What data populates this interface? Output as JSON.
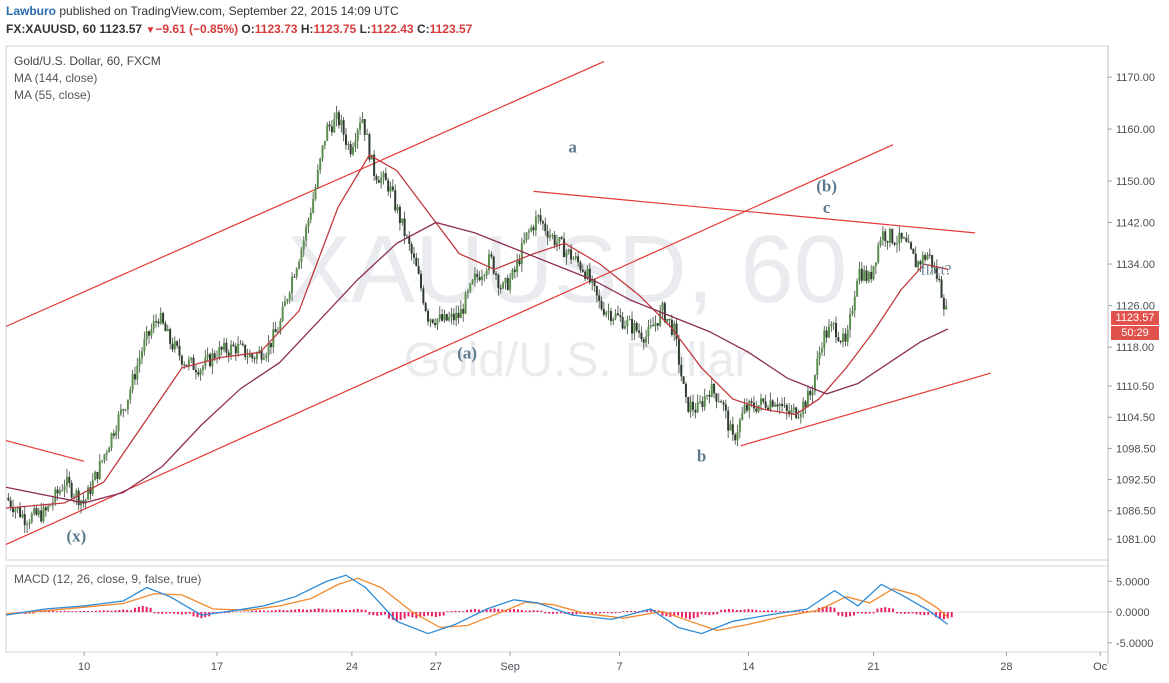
{
  "header": {
    "author": "Lawburo",
    "published": "published on TradingView.com, September 22, 2015 14:09 UTC",
    "symbol": "FX:XAUUSD, 60",
    "last": "1123.57",
    "change_icon": "triangle-down-icon",
    "change": "−9.61 (−0.85%)",
    "ohlc": [
      {
        "k": "O:",
        "v": "1123.73"
      },
      {
        "k": "H:",
        "v": "1123.75"
      },
      {
        "k": "L:",
        "v": "1122.43"
      },
      {
        "k": "C:",
        "v": "1123.57"
      }
    ]
  },
  "legend": {
    "title": "Gold/U.S. Dollar, 60, FXCM",
    "ma1": "MA (144, close)",
    "ma2": "MA (55, close)",
    "macd": "MACD (12, 26, close, 9, false, true)"
  },
  "watermark": {
    "line1": "XAUUSD, 60",
    "line2": "Gold/U.S. Dollar"
  },
  "price_badge": {
    "value": "1123.57",
    "countdown": "50:29",
    "color": "#e0524b"
  },
  "annotations": [
    {
      "text": "a",
      "time": 14.5,
      "price": 1155.5
    },
    {
      "text": "(a)",
      "time": 11.8,
      "price": 1115.8
    },
    {
      "text": "(b)",
      "time": 21.0,
      "price": 1148.0
    },
    {
      "text": "c",
      "time": 21.0,
      "price": 1143.8
    },
    {
      "text": "fl/ct?",
      "time": 23.8,
      "price": 1132.0
    },
    {
      "text": "b",
      "time": 17.8,
      "price": 1096.0
    },
    {
      "text": "(x)",
      "time": 1.8,
      "price": 1080.6
    }
  ],
  "chart_data": {
    "type": "line",
    "price_axis": {
      "range": [
        1077,
        1176
      ],
      "ticks": [
        1170.0,
        1160.0,
        1150.0,
        1142.0,
        1134.0,
        1126.0,
        1118.0,
        1110.5,
        1104.5,
        1098.5,
        1092.5,
        1086.5,
        1081.0
      ],
      "tick_labels": [
        "1170.00",
        "1160.00",
        "1150.00",
        "1142.00",
        "1134.00",
        "1126.00",
        "1118.00",
        "1110.50",
        "1104.50",
        "1098.50",
        "1092.50",
        "1086.50",
        "1081.00"
      ]
    },
    "time_axis": {
      "unit": "trading days (Sep 2015)",
      "ticks": [
        {
          "label": "10",
          "t": 2.0
        },
        {
          "label": "17",
          "t": 5.4
        },
        {
          "label": "24",
          "t": 8.85
        },
        {
          "label": "27",
          "t": 11.0
        },
        {
          "label": "Sep",
          "t": 12.9
        },
        {
          "label": "7",
          "t": 15.7
        },
        {
          "label": "14",
          "t": 19.0
        },
        {
          "label": "21",
          "t": 22.2
        },
        {
          "label": "28",
          "t": 25.6
        },
        {
          "label": "Oc",
          "t": 28.0
        }
      ]
    },
    "price_path": [
      [
        0.0,
        1089
      ],
      [
        0.5,
        1085
      ],
      [
        1.0,
        1086
      ],
      [
        1.5,
        1092
      ],
      [
        2.0,
        1088
      ],
      [
        2.4,
        1095
      ],
      [
        2.8,
        1103
      ],
      [
        3.1,
        1108
      ],
      [
        3.5,
        1118
      ],
      [
        3.9,
        1124
      ],
      [
        4.2,
        1119
      ],
      [
        4.6,
        1115
      ],
      [
        5.0,
        1114
      ],
      [
        5.4,
        1117
      ],
      [
        5.9,
        1118
      ],
      [
        6.3,
        1116
      ],
      [
        6.7,
        1118
      ],
      [
        7.0,
        1122
      ],
      [
        7.3,
        1131
      ],
      [
        7.6,
        1138
      ],
      [
        7.9,
        1148
      ],
      [
        8.2,
        1160
      ],
      [
        8.5,
        1162
      ],
      [
        8.8,
        1156
      ],
      [
        9.1,
        1163
      ],
      [
        9.4,
        1152
      ],
      [
        9.8,
        1149
      ],
      [
        10.2,
        1140
      ],
      [
        10.5,
        1133
      ],
      [
        10.8,
        1124
      ],
      [
        11.2,
        1123
      ],
      [
        11.6,
        1124
      ],
      [
        12.0,
        1131
      ],
      [
        12.4,
        1135
      ],
      [
        12.7,
        1129
      ],
      [
        13.0,
        1132
      ],
      [
        13.3,
        1139
      ],
      [
        13.6,
        1143
      ],
      [
        14.0,
        1139
      ],
      [
        14.4,
        1136
      ],
      [
        14.8,
        1133
      ],
      [
        15.2,
        1126
      ],
      [
        15.6,
        1124
      ],
      [
        16.0,
        1122
      ],
      [
        16.4,
        1120
      ],
      [
        16.8,
        1125
      ],
      [
        17.1,
        1121
      ],
      [
        17.4,
        1107
      ],
      [
        17.7,
        1106
      ],
      [
        18.0,
        1110
      ],
      [
        18.3,
        1108
      ],
      [
        18.6,
        1100
      ],
      [
        18.9,
        1106
      ],
      [
        19.3,
        1107
      ],
      [
        19.7,
        1108
      ],
      [
        20.0,
        1105
      ],
      [
        20.3,
        1106
      ],
      [
        20.6,
        1109
      ],
      [
        20.9,
        1120
      ],
      [
        21.2,
        1122
      ],
      [
        21.5,
        1118
      ],
      [
        21.8,
        1133
      ],
      [
        22.1,
        1131
      ],
      [
        22.4,
        1140
      ],
      [
        22.7,
        1139
      ],
      [
        23.0,
        1138
      ],
      [
        23.3,
        1134
      ],
      [
        23.6,
        1136
      ],
      [
        23.9,
        1130
      ],
      [
        24.1,
        1123.57
      ]
    ],
    "series": [
      {
        "name": "MA (55, close)",
        "color": "#c0393f",
        "points": [
          [
            0.0,
            1087
          ],
          [
            1.5,
            1088
          ],
          [
            2.5,
            1092
          ],
          [
            3.5,
            1103
          ],
          [
            4.5,
            1114
          ],
          [
            5.5,
            1116
          ],
          [
            6.5,
            1117
          ],
          [
            7.5,
            1125
          ],
          [
            8.5,
            1145
          ],
          [
            9.3,
            1155
          ],
          [
            10.0,
            1152
          ],
          [
            10.8,
            1144
          ],
          [
            11.6,
            1136
          ],
          [
            12.5,
            1133
          ],
          [
            13.5,
            1136
          ],
          [
            14.3,
            1138
          ],
          [
            15.2,
            1134
          ],
          [
            16.2,
            1128
          ],
          [
            17.0,
            1122
          ],
          [
            17.8,
            1114
          ],
          [
            18.6,
            1108
          ],
          [
            19.4,
            1106
          ],
          [
            20.2,
            1105
          ],
          [
            20.8,
            1108
          ],
          [
            21.5,
            1114
          ],
          [
            22.2,
            1121
          ],
          [
            22.9,
            1129
          ],
          [
            23.5,
            1134
          ],
          [
            24.1,
            1133
          ]
        ]
      },
      {
        "name": "MA (144, close)",
        "color": "#8e2f55",
        "points": [
          [
            0.0,
            1091
          ],
          [
            2.0,
            1088
          ],
          [
            3.0,
            1090
          ],
          [
            4.0,
            1095
          ],
          [
            5.0,
            1103
          ],
          [
            6.0,
            1110
          ],
          [
            7.0,
            1115
          ],
          [
            8.0,
            1123
          ],
          [
            9.0,
            1131
          ],
          [
            10.0,
            1138
          ],
          [
            11.0,
            1142
          ],
          [
            12.0,
            1140
          ],
          [
            13.0,
            1137
          ],
          [
            14.0,
            1134
          ],
          [
            15.0,
            1131
          ],
          [
            16.0,
            1127
          ],
          [
            17.0,
            1124
          ],
          [
            18.0,
            1121
          ],
          [
            19.0,
            1117
          ],
          [
            20.0,
            1112
          ],
          [
            21.0,
            1109
          ],
          [
            21.8,
            1111
          ],
          [
            22.6,
            1115
          ],
          [
            23.4,
            1119
          ],
          [
            24.1,
            1121.5
          ]
        ]
      }
    ],
    "trendlines": [
      {
        "from": [
          0.0,
          1122
        ],
        "to": [
          15.3,
          1173
        ]
      },
      {
        "from": [
          0.0,
          1080
        ],
        "to": [
          22.7,
          1157
        ]
      },
      {
        "from": [
          0.0,
          1100
        ],
        "to": [
          2.0,
          1096
        ]
      },
      {
        "from": [
          13.5,
          1148
        ],
        "to": [
          24.8,
          1140
        ]
      },
      {
        "from": [
          18.8,
          1099
        ],
        "to": [
          25.2,
          1113
        ]
      }
    ],
    "macd": {
      "range": [
        -6.5,
        7.5
      ],
      "ticks": [
        5.0,
        0.0,
        -5.0
      ],
      "tick_labels": [
        "5.0000",
        "0.0000",
        "-5.0000"
      ],
      "macd_line": [
        [
          0.0,
          -0.5
        ],
        [
          1.0,
          0.5
        ],
        [
          2.0,
          1.0
        ],
        [
          3.0,
          1.8
        ],
        [
          3.6,
          4.0
        ],
        [
          4.2,
          2.5
        ],
        [
          5.0,
          -0.5
        ],
        [
          5.8,
          0.2
        ],
        [
          6.6,
          1.0
        ],
        [
          7.4,
          2.5
        ],
        [
          8.2,
          5.0
        ],
        [
          8.7,
          6.0
        ],
        [
          9.2,
          4.0
        ],
        [
          10.0,
          -1.5
        ],
        [
          10.8,
          -3.5
        ],
        [
          11.5,
          -2.0
        ],
        [
          12.3,
          0.5
        ],
        [
          13.0,
          2.0
        ],
        [
          13.6,
          1.5
        ],
        [
          14.5,
          -0.5
        ],
        [
          15.5,
          -1.2
        ],
        [
          16.5,
          0.5
        ],
        [
          17.2,
          -2.5
        ],
        [
          17.8,
          -3.5
        ],
        [
          18.6,
          -1.5
        ],
        [
          19.5,
          -0.5
        ],
        [
          20.5,
          0.5
        ],
        [
          21.2,
          3.5
        ],
        [
          21.8,
          1.0
        ],
        [
          22.4,
          4.5
        ],
        [
          23.0,
          2.5
        ],
        [
          23.6,
          0.3
        ],
        [
          24.1,
          -2.0
        ]
      ],
      "signal_line": [
        [
          0.0,
          -0.3
        ],
        [
          1.0,
          0.2
        ],
        [
          2.0,
          0.8
        ],
        [
          3.0,
          1.4
        ],
        [
          3.8,
          3.0
        ],
        [
          4.5,
          2.8
        ],
        [
          5.3,
          0.5
        ],
        [
          6.2,
          0.3
        ],
        [
          7.0,
          1.0
        ],
        [
          7.8,
          2.2
        ],
        [
          8.5,
          4.5
        ],
        [
          9.0,
          5.5
        ],
        [
          9.6,
          4.0
        ],
        [
          10.4,
          0.0
        ],
        [
          11.1,
          -2.5
        ],
        [
          11.8,
          -2.2
        ],
        [
          12.6,
          -0.2
        ],
        [
          13.3,
          1.6
        ],
        [
          14.0,
          1.2
        ],
        [
          14.8,
          -0.2
        ],
        [
          15.8,
          -1.0
        ],
        [
          16.8,
          0.1
        ],
        [
          17.5,
          -1.5
        ],
        [
          18.2,
          -3.0
        ],
        [
          19.0,
          -2.0
        ],
        [
          19.8,
          -0.8
        ],
        [
          20.8,
          0.3
        ],
        [
          21.5,
          2.5
        ],
        [
          22.1,
          1.5
        ],
        [
          22.7,
          3.8
        ],
        [
          23.3,
          2.8
        ],
        [
          23.8,
          0.8
        ],
        [
          24.1,
          -0.8
        ]
      ],
      "histogram": [
        [
          0.5,
          -0.3
        ],
        [
          1.0,
          0.3
        ],
        [
          1.5,
          0.2
        ],
        [
          2.0,
          0.2
        ],
        [
          2.5,
          0.3
        ],
        [
          3.0,
          0.4
        ],
        [
          3.5,
          1.0
        ],
        [
          4.0,
          -0.3
        ],
        [
          4.5,
          -0.4
        ],
        [
          5.0,
          -1.0
        ],
        [
          5.5,
          -0.2
        ],
        [
          6.0,
          0.1
        ],
        [
          6.5,
          0.3
        ],
        [
          7.0,
          0.4
        ],
        [
          7.5,
          0.5
        ],
        [
          8.0,
          0.6
        ],
        [
          8.5,
          0.5
        ],
        [
          9.0,
          0.5
        ],
        [
          9.5,
          -0.6
        ],
        [
          10.0,
          -1.5
        ],
        [
          10.5,
          -1.0
        ],
        [
          11.0,
          -0.8
        ],
        [
          11.5,
          0.2
        ],
        [
          12.0,
          0.5
        ],
        [
          12.5,
          0.6
        ],
        [
          13.0,
          0.5
        ],
        [
          13.5,
          0.3
        ],
        [
          14.0,
          -0.3
        ],
        [
          14.5,
          -0.4
        ],
        [
          15.0,
          -0.3
        ],
        [
          15.5,
          -0.2
        ],
        [
          16.0,
          0.2
        ],
        [
          16.5,
          0.4
        ],
        [
          17.0,
          -0.8
        ],
        [
          17.5,
          -1.2
        ],
        [
          18.0,
          -0.5
        ],
        [
          18.5,
          0.5
        ],
        [
          19.0,
          0.5
        ],
        [
          19.5,
          0.3
        ],
        [
          20.0,
          0.2
        ],
        [
          20.5,
          0.2
        ],
        [
          21.0,
          1.0
        ],
        [
          21.5,
          -0.8
        ],
        [
          22.0,
          -0.3
        ],
        [
          22.5,
          0.8
        ],
        [
          23.0,
          -0.3
        ],
        [
          23.5,
          -0.5
        ],
        [
          24.0,
          -1.2
        ]
      ],
      "macd_color": "#2d8bd6",
      "signal_color": "#f28a2e",
      "hist_color": "#e91e63"
    }
  }
}
